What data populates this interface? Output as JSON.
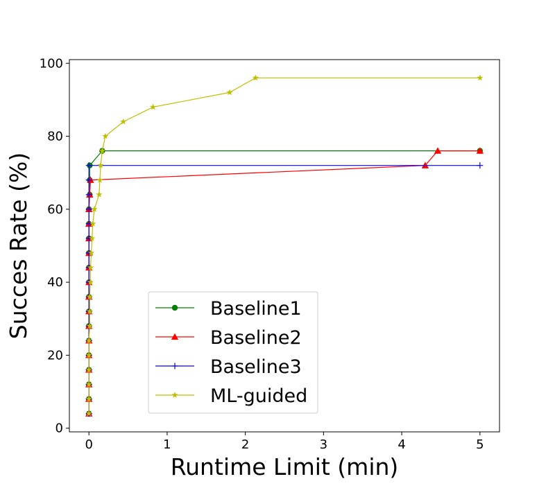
{
  "chart_data": {
    "type": "line",
    "title": "",
    "xlabel": "Runtime Limit (min)",
    "ylabel": "Succes Rate (%)",
    "xlim": [
      -0.25,
      5.25
    ],
    "ylim": [
      -1,
      101
    ],
    "xticks": [
      0,
      1,
      2,
      3,
      4,
      5
    ],
    "yticks": [
      0,
      20,
      40,
      60,
      80,
      100
    ],
    "xtick_labels": [
      "0",
      "1",
      "2",
      "3",
      "4",
      "5"
    ],
    "ytick_labels": [
      "0",
      "20",
      "40",
      "60",
      "80",
      "100"
    ],
    "grid": false,
    "legend_position": "lower-center",
    "series": [
      {
        "name": "Baseline1",
        "color": "#008000",
        "marker": "circle",
        "points": [
          [
            0.0,
            4
          ],
          [
            0.0,
            8
          ],
          [
            0.0,
            12
          ],
          [
            0.0,
            16
          ],
          [
            0.0,
            20
          ],
          [
            0.0,
            24
          ],
          [
            0.0,
            28
          ],
          [
            0.0,
            32
          ],
          [
            0.0,
            36
          ],
          [
            0.0,
            40
          ],
          [
            0.0,
            44
          ],
          [
            0.0,
            48
          ],
          [
            0.0,
            52
          ],
          [
            0.0,
            56
          ],
          [
            0.0,
            60
          ],
          [
            0.01,
            64
          ],
          [
            0.01,
            68
          ],
          [
            0.01,
            72
          ],
          [
            0.17,
            76
          ],
          [
            5.0,
            76
          ]
        ]
      },
      {
        "name": "Baseline2",
        "color": "#ff0000",
        "marker": "triangle",
        "points": [
          [
            0.0,
            4
          ],
          [
            0.0,
            8
          ],
          [
            0.0,
            12
          ],
          [
            0.0,
            16
          ],
          [
            0.0,
            20
          ],
          [
            0.0,
            24
          ],
          [
            0.0,
            28
          ],
          [
            0.0,
            32
          ],
          [
            0.0,
            36
          ],
          [
            0.0,
            40
          ],
          [
            0.0,
            44
          ],
          [
            0.0,
            48
          ],
          [
            0.0,
            52
          ],
          [
            0.0,
            56
          ],
          [
            0.0,
            60
          ],
          [
            0.01,
            64
          ],
          [
            0.02,
            68
          ],
          [
            4.3,
            72
          ],
          [
            4.46,
            76
          ],
          [
            5.0,
            76
          ]
        ]
      },
      {
        "name": "Baseline3",
        "color": "#0000ff",
        "marker": "plus",
        "points": [
          [
            0.0,
            4
          ],
          [
            0.0,
            8
          ],
          [
            0.0,
            12
          ],
          [
            0.0,
            16
          ],
          [
            0.0,
            20
          ],
          [
            0.0,
            24
          ],
          [
            0.0,
            28
          ],
          [
            0.0,
            32
          ],
          [
            0.0,
            36
          ],
          [
            0.0,
            40
          ],
          [
            0.0,
            44
          ],
          [
            0.0,
            48
          ],
          [
            0.0,
            52
          ],
          [
            0.0,
            56
          ],
          [
            0.0,
            60
          ],
          [
            0.0,
            64
          ],
          [
            0.0,
            68
          ],
          [
            0.0,
            72
          ],
          [
            5.0,
            72
          ]
        ]
      },
      {
        "name": "ML-guided",
        "color": "#bfbf00",
        "marker": "star",
        "points": [
          [
            0.0,
            4
          ],
          [
            0.0,
            8
          ],
          [
            0.0,
            12
          ],
          [
            0.0,
            16
          ],
          [
            0.0,
            20
          ],
          [
            0.0,
            24
          ],
          [
            0.01,
            28
          ],
          [
            0.01,
            32
          ],
          [
            0.01,
            36
          ],
          [
            0.02,
            40
          ],
          [
            0.02,
            44
          ],
          [
            0.03,
            48
          ],
          [
            0.04,
            52
          ],
          [
            0.05,
            56
          ],
          [
            0.07,
            60
          ],
          [
            0.13,
            64
          ],
          [
            0.14,
            68
          ],
          [
            0.15,
            72
          ],
          [
            0.17,
            76
          ],
          [
            0.21,
            80
          ],
          [
            0.44,
            84
          ],
          [
            0.82,
            88
          ],
          [
            1.8,
            92
          ],
          [
            2.13,
            96
          ],
          [
            5.0,
            96
          ]
        ]
      }
    ]
  }
}
